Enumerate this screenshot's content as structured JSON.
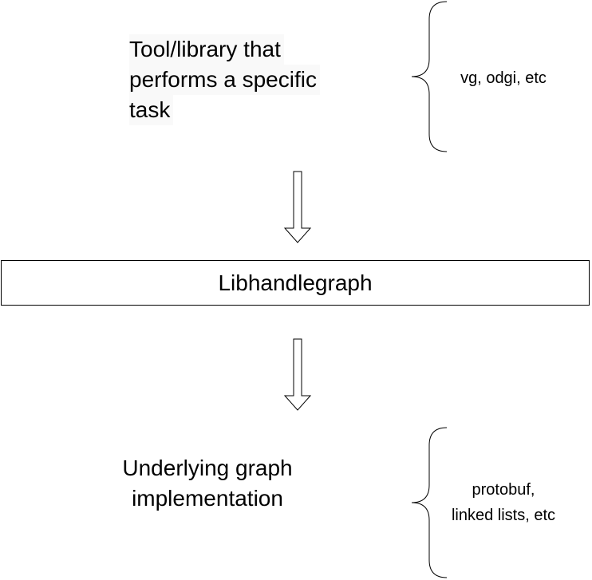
{
  "diagram": {
    "top_block": {
      "lines": [
        "Tool/library that",
        "performs a specific",
        "task"
      ]
    },
    "top_brace_label": "vg, odgi, etc",
    "middle_box": {
      "label": "Libhandlegraph"
    },
    "bottom_block": {
      "lines": [
        "Underlying graph",
        "implementation"
      ]
    },
    "bottom_brace_label": {
      "lines": [
        "protobuf,",
        "linked lists, etc"
      ]
    }
  }
}
